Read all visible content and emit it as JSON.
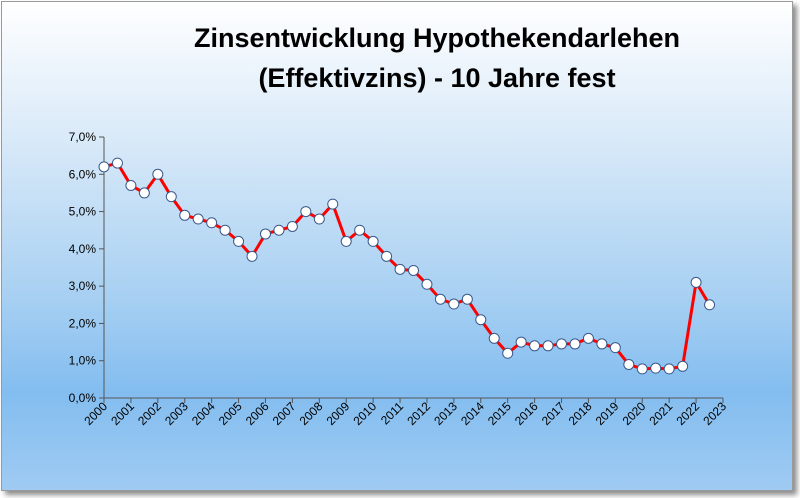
{
  "chart_data": {
    "type": "line",
    "title": [
      "Zinsentwicklung Hypothekendarlehen",
      "(Effektivzins) - 10 Jahre fest"
    ],
    "xlabel": "",
    "ylabel": "",
    "x_range": [
      2000,
      2023
    ],
    "ylim": [
      0,
      7
    ],
    "y_ticks": [
      "0,0%",
      "1,0%",
      "2,0%",
      "3,0%",
      "4,0%",
      "5,0%",
      "6,0%",
      "7,0%"
    ],
    "x_ticks": [
      "2000",
      "2001",
      "2002",
      "2003",
      "2004",
      "2005",
      "2006",
      "2007",
      "2008",
      "2009",
      "2010",
      "2011",
      "2012",
      "2013",
      "2014",
      "2015",
      "2016",
      "2017",
      "2018",
      "2019",
      "2020",
      "2021",
      "2022",
      "2023"
    ],
    "grid": false,
    "legend": "none",
    "series": [
      {
        "color": "#ff0000",
        "marker_fill": "#ffffff",
        "points": [
          [
            2000.0,
            6.2
          ],
          [
            2000.5,
            6.3
          ],
          [
            2001.0,
            5.7
          ],
          [
            2001.5,
            5.5
          ],
          [
            2002.0,
            6.0
          ],
          [
            2002.5,
            5.4
          ],
          [
            2003.0,
            4.9
          ],
          [
            2003.5,
            4.8
          ],
          [
            2004.0,
            4.7
          ],
          [
            2004.5,
            4.5
          ],
          [
            2005.0,
            4.2
          ],
          [
            2005.5,
            3.8
          ],
          [
            2006.0,
            4.4
          ],
          [
            2006.5,
            4.5
          ],
          [
            2007.0,
            4.6
          ],
          [
            2007.5,
            5.0
          ],
          [
            2008.0,
            4.8
          ],
          [
            2008.5,
            5.2
          ],
          [
            2009.0,
            4.2
          ],
          [
            2009.5,
            4.5
          ],
          [
            2010.0,
            4.2
          ],
          [
            2010.5,
            3.8
          ],
          [
            2011.0,
            3.45
          ],
          [
            2011.5,
            3.42
          ],
          [
            2012.0,
            3.05
          ],
          [
            2012.5,
            2.65
          ],
          [
            2013.0,
            2.52
          ],
          [
            2013.5,
            2.65
          ],
          [
            2014.0,
            2.1
          ],
          [
            2014.5,
            1.6
          ],
          [
            2015.0,
            1.2
          ],
          [
            2015.5,
            1.5
          ],
          [
            2016.0,
            1.4
          ],
          [
            2016.5,
            1.4
          ],
          [
            2017.0,
            1.45
          ],
          [
            2017.5,
            1.45
          ],
          [
            2018.0,
            1.6
          ],
          [
            2018.5,
            1.45
          ],
          [
            2019.0,
            1.35
          ],
          [
            2019.5,
            0.9
          ],
          [
            2020.0,
            0.78
          ],
          [
            2020.5,
            0.8
          ],
          [
            2021.0,
            0.78
          ],
          [
            2021.5,
            0.85
          ],
          [
            2022.0,
            3.1
          ],
          [
            2022.5,
            2.5
          ]
        ]
      }
    ]
  }
}
